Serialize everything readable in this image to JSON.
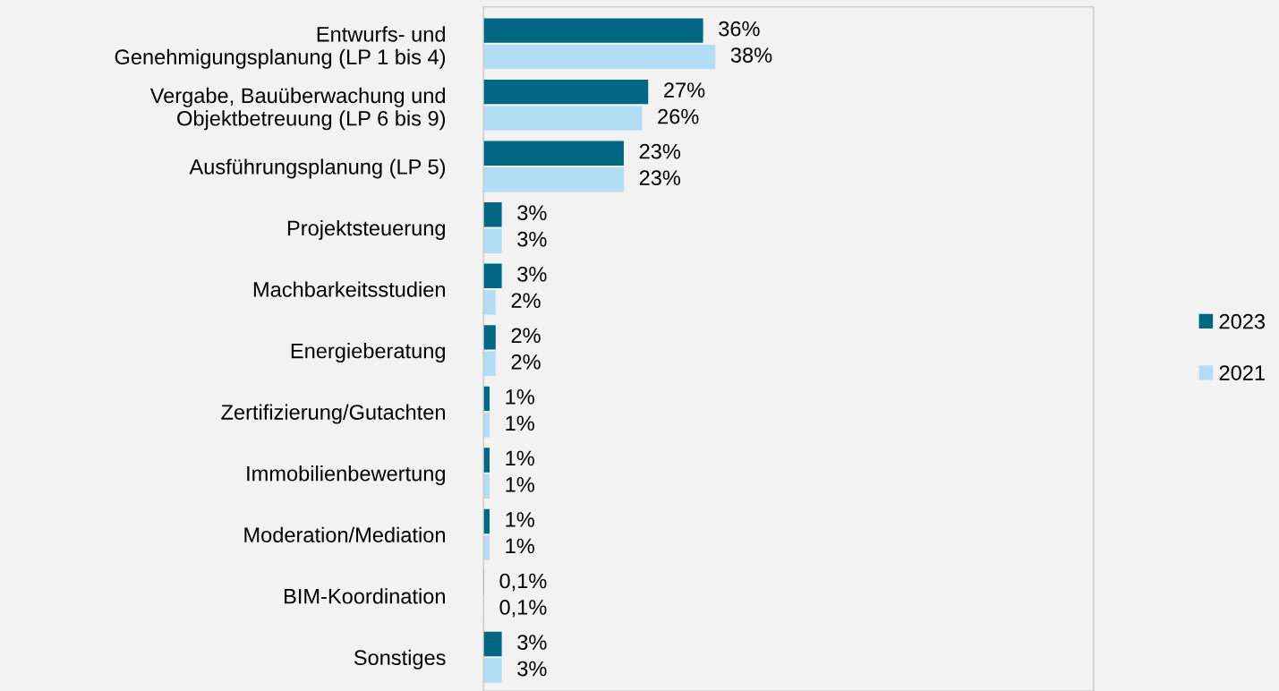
{
  "chart_data": {
    "type": "bar",
    "orientation": "horizontal",
    "categories": [
      "Entwurfs- und\nGenehmigungsplanung (LP 1 bis 4)",
      "Vergabe, Bauüberwachung und\nObjektbetreuung (LP 6 bis 9)",
      "Ausführungsplanung (LP 5)",
      "Projektsteuerung",
      "Machbarkeitsstudien",
      "Energieberatung",
      "Zertifizierung/Gutachten",
      "Immobilienbewertung",
      "Moderation/Mediation",
      "BIM-Koordination",
      "Sonstiges"
    ],
    "series": [
      {
        "name": "2023",
        "color": "#006783",
        "values": [
          36,
          27,
          23,
          3,
          3,
          2,
          1,
          1,
          1,
          0.1,
          3
        ],
        "value_labels": [
          "36%",
          "27%",
          "23%",
          "3%",
          "3%",
          "2%",
          "1%",
          "1%",
          "1%",
          "0,1%",
          "3%"
        ]
      },
      {
        "name": "2021",
        "color": "#b3ddf5",
        "values": [
          38,
          26,
          23,
          3,
          2,
          2,
          1,
          1,
          1,
          0.1,
          3
        ],
        "value_labels": [
          "38%",
          "26%",
          "23%",
          "3%",
          "2%",
          "2%",
          "1%",
          "1%",
          "1%",
          "0,1%",
          "3%"
        ]
      }
    ],
    "xlim": [
      0,
      100
    ],
    "tick_labels": "y",
    "legend": "right",
    "grid": false
  }
}
